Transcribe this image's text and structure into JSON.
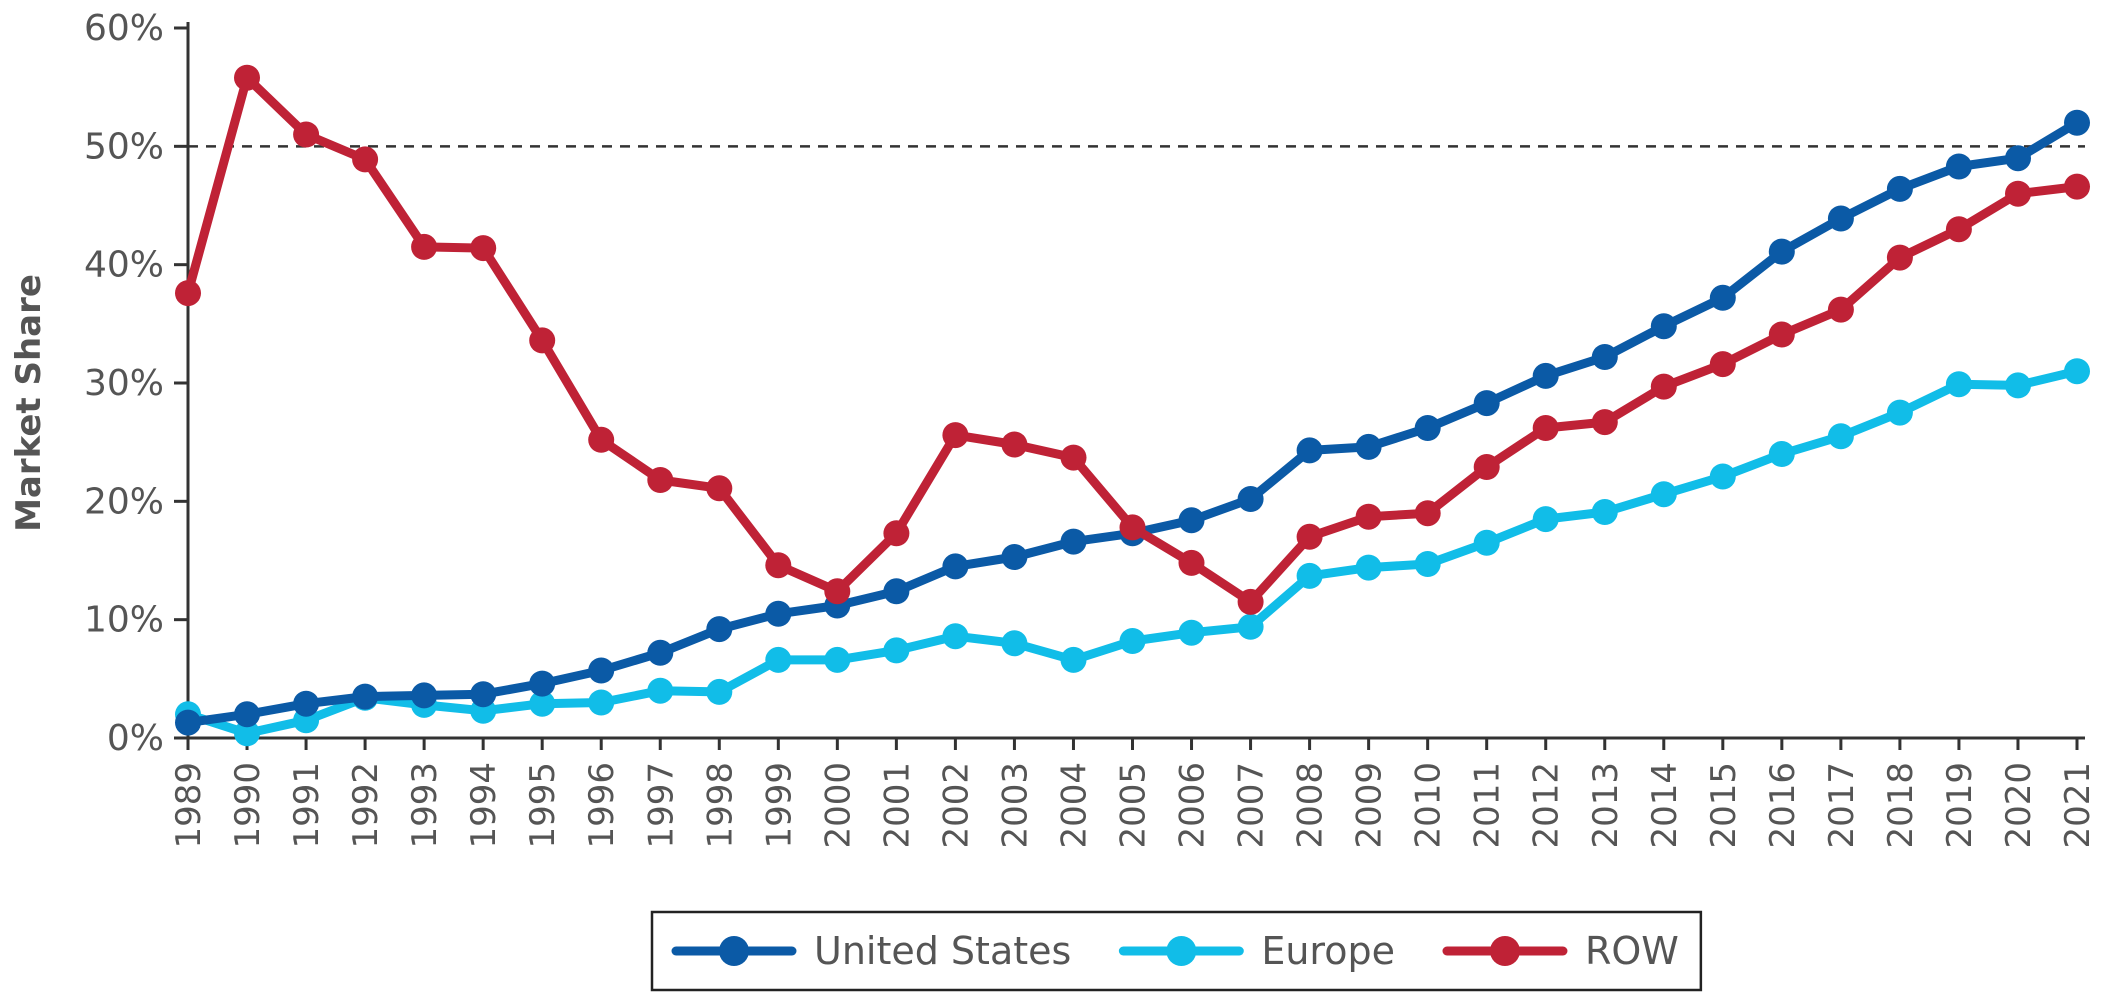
{
  "chart_data": {
    "type": "line",
    "ylabel": "Market Share",
    "xlabel": "",
    "ylim": [
      0,
      60
    ],
    "yticks": [
      0,
      10,
      20,
      30,
      40,
      50,
      60
    ],
    "ytick_labels": [
      "0%",
      "10%",
      "20%",
      "30%",
      "40%",
      "50%",
      "60%"
    ],
    "reference_line": {
      "y": 50,
      "style": "dashed"
    },
    "grid": false,
    "legend_position": "bottom-center",
    "x": [
      "1989",
      "1990",
      "1991",
      "1992",
      "1993",
      "1994",
      "1995",
      "1996",
      "1997",
      "1998",
      "1999",
      "2000",
      "2001",
      "2002",
      "2003",
      "2004",
      "2005",
      "2006",
      "2007",
      "2008",
      "2009",
      "2010",
      "2011",
      "2012",
      "2013",
      "2014",
      "2015",
      "2016",
      "2017",
      "2018",
      "2019",
      "2020",
      "2021"
    ],
    "series": [
      {
        "name": "United States",
        "color": "#0b5aa6",
        "values": [
          1.3,
          2.0,
          2.9,
          3.5,
          3.6,
          3.7,
          4.6,
          5.7,
          7.2,
          9.2,
          10.5,
          11.2,
          12.4,
          14.5,
          15.3,
          16.6,
          17.3,
          18.4,
          20.2,
          24.3,
          24.6,
          26.2,
          28.3,
          30.6,
          32.2,
          34.8,
          37.2,
          41.1,
          43.9,
          46.4,
          48.3,
          49.0,
          52.0
        ]
      },
      {
        "name": "Europe",
        "color": "#11bde8",
        "values": [
          2.0,
          0.4,
          1.5,
          3.4,
          2.8,
          2.3,
          2.9,
          3.0,
          4.0,
          3.9,
          6.6,
          6.6,
          7.4,
          8.6,
          8.0,
          6.6,
          8.2,
          8.9,
          9.4,
          13.7,
          14.4,
          14.7,
          16.5,
          18.5,
          19.1,
          20.6,
          22.1,
          24.0,
          25.5,
          27.5,
          29.9,
          29.8,
          31.0
        ]
      },
      {
        "name": "ROW",
        "color": "#bf2236",
        "values": [
          37.6,
          55.8,
          51.0,
          48.9,
          41.5,
          41.4,
          33.6,
          25.2,
          21.8,
          21.1,
          14.6,
          12.4,
          17.3,
          25.6,
          24.8,
          23.7,
          17.8,
          14.8,
          11.5,
          17.0,
          18.7,
          19.0,
          22.9,
          26.2,
          26.7,
          29.7,
          31.6,
          34.1,
          36.2,
          40.6,
          43.0,
          46.0,
          46.6
        ]
      }
    ]
  }
}
